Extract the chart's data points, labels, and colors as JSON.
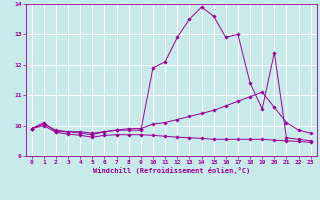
{
  "xlabel": "Windchill (Refroidissement éolien,°C)",
  "bg_color": "#c8eaea",
  "grid_color": "#ffffff",
  "line_color": "#990099",
  "xlim": [
    -0.5,
    23.5
  ],
  "ylim": [
    9,
    14
  ],
  "xticks": [
    0,
    1,
    2,
    3,
    4,
    5,
    6,
    7,
    8,
    9,
    10,
    11,
    12,
    13,
    14,
    15,
    16,
    17,
    18,
    19,
    20,
    21,
    22,
    23
  ],
  "yticks": [
    9,
    10,
    11,
    12,
    13,
    14
  ],
  "series1_x": [
    0,
    1,
    2,
    3,
    4,
    5,
    6,
    7,
    8,
    9,
    10,
    11,
    12,
    13,
    14,
    15,
    16,
    17,
    18,
    19,
    20,
    21,
    22,
    23
  ],
  "series1_y": [
    9.9,
    10.1,
    9.8,
    9.8,
    9.75,
    9.7,
    9.8,
    9.85,
    9.85,
    9.85,
    11.9,
    12.1,
    12.9,
    13.5,
    13.9,
    13.6,
    12.9,
    13.0,
    11.4,
    10.55,
    12.4,
    9.6,
    9.55,
    9.5
  ],
  "series2_x": [
    0,
    1,
    2,
    3,
    4,
    5,
    6,
    7,
    8,
    9,
    10,
    11,
    12,
    13,
    14,
    15,
    16,
    17,
    18,
    19,
    20,
    21,
    22,
    23
  ],
  "series2_y": [
    9.9,
    10.05,
    9.85,
    9.8,
    9.8,
    9.75,
    9.8,
    9.85,
    9.9,
    9.9,
    10.05,
    10.1,
    10.2,
    10.3,
    10.4,
    10.5,
    10.65,
    10.8,
    10.95,
    11.1,
    10.6,
    10.1,
    9.85,
    9.75
  ],
  "series3_x": [
    0,
    1,
    2,
    3,
    4,
    5,
    6,
    7,
    8,
    9,
    10,
    11,
    12,
    13,
    14,
    15,
    16,
    17,
    18,
    19,
    20,
    21,
    22,
    23
  ],
  "series3_y": [
    9.9,
    10.0,
    9.78,
    9.72,
    9.68,
    9.62,
    9.68,
    9.7,
    9.7,
    9.7,
    9.68,
    9.65,
    9.62,
    9.6,
    9.58,
    9.55,
    9.55,
    9.55,
    9.55,
    9.55,
    9.52,
    9.5,
    9.48,
    9.45
  ]
}
